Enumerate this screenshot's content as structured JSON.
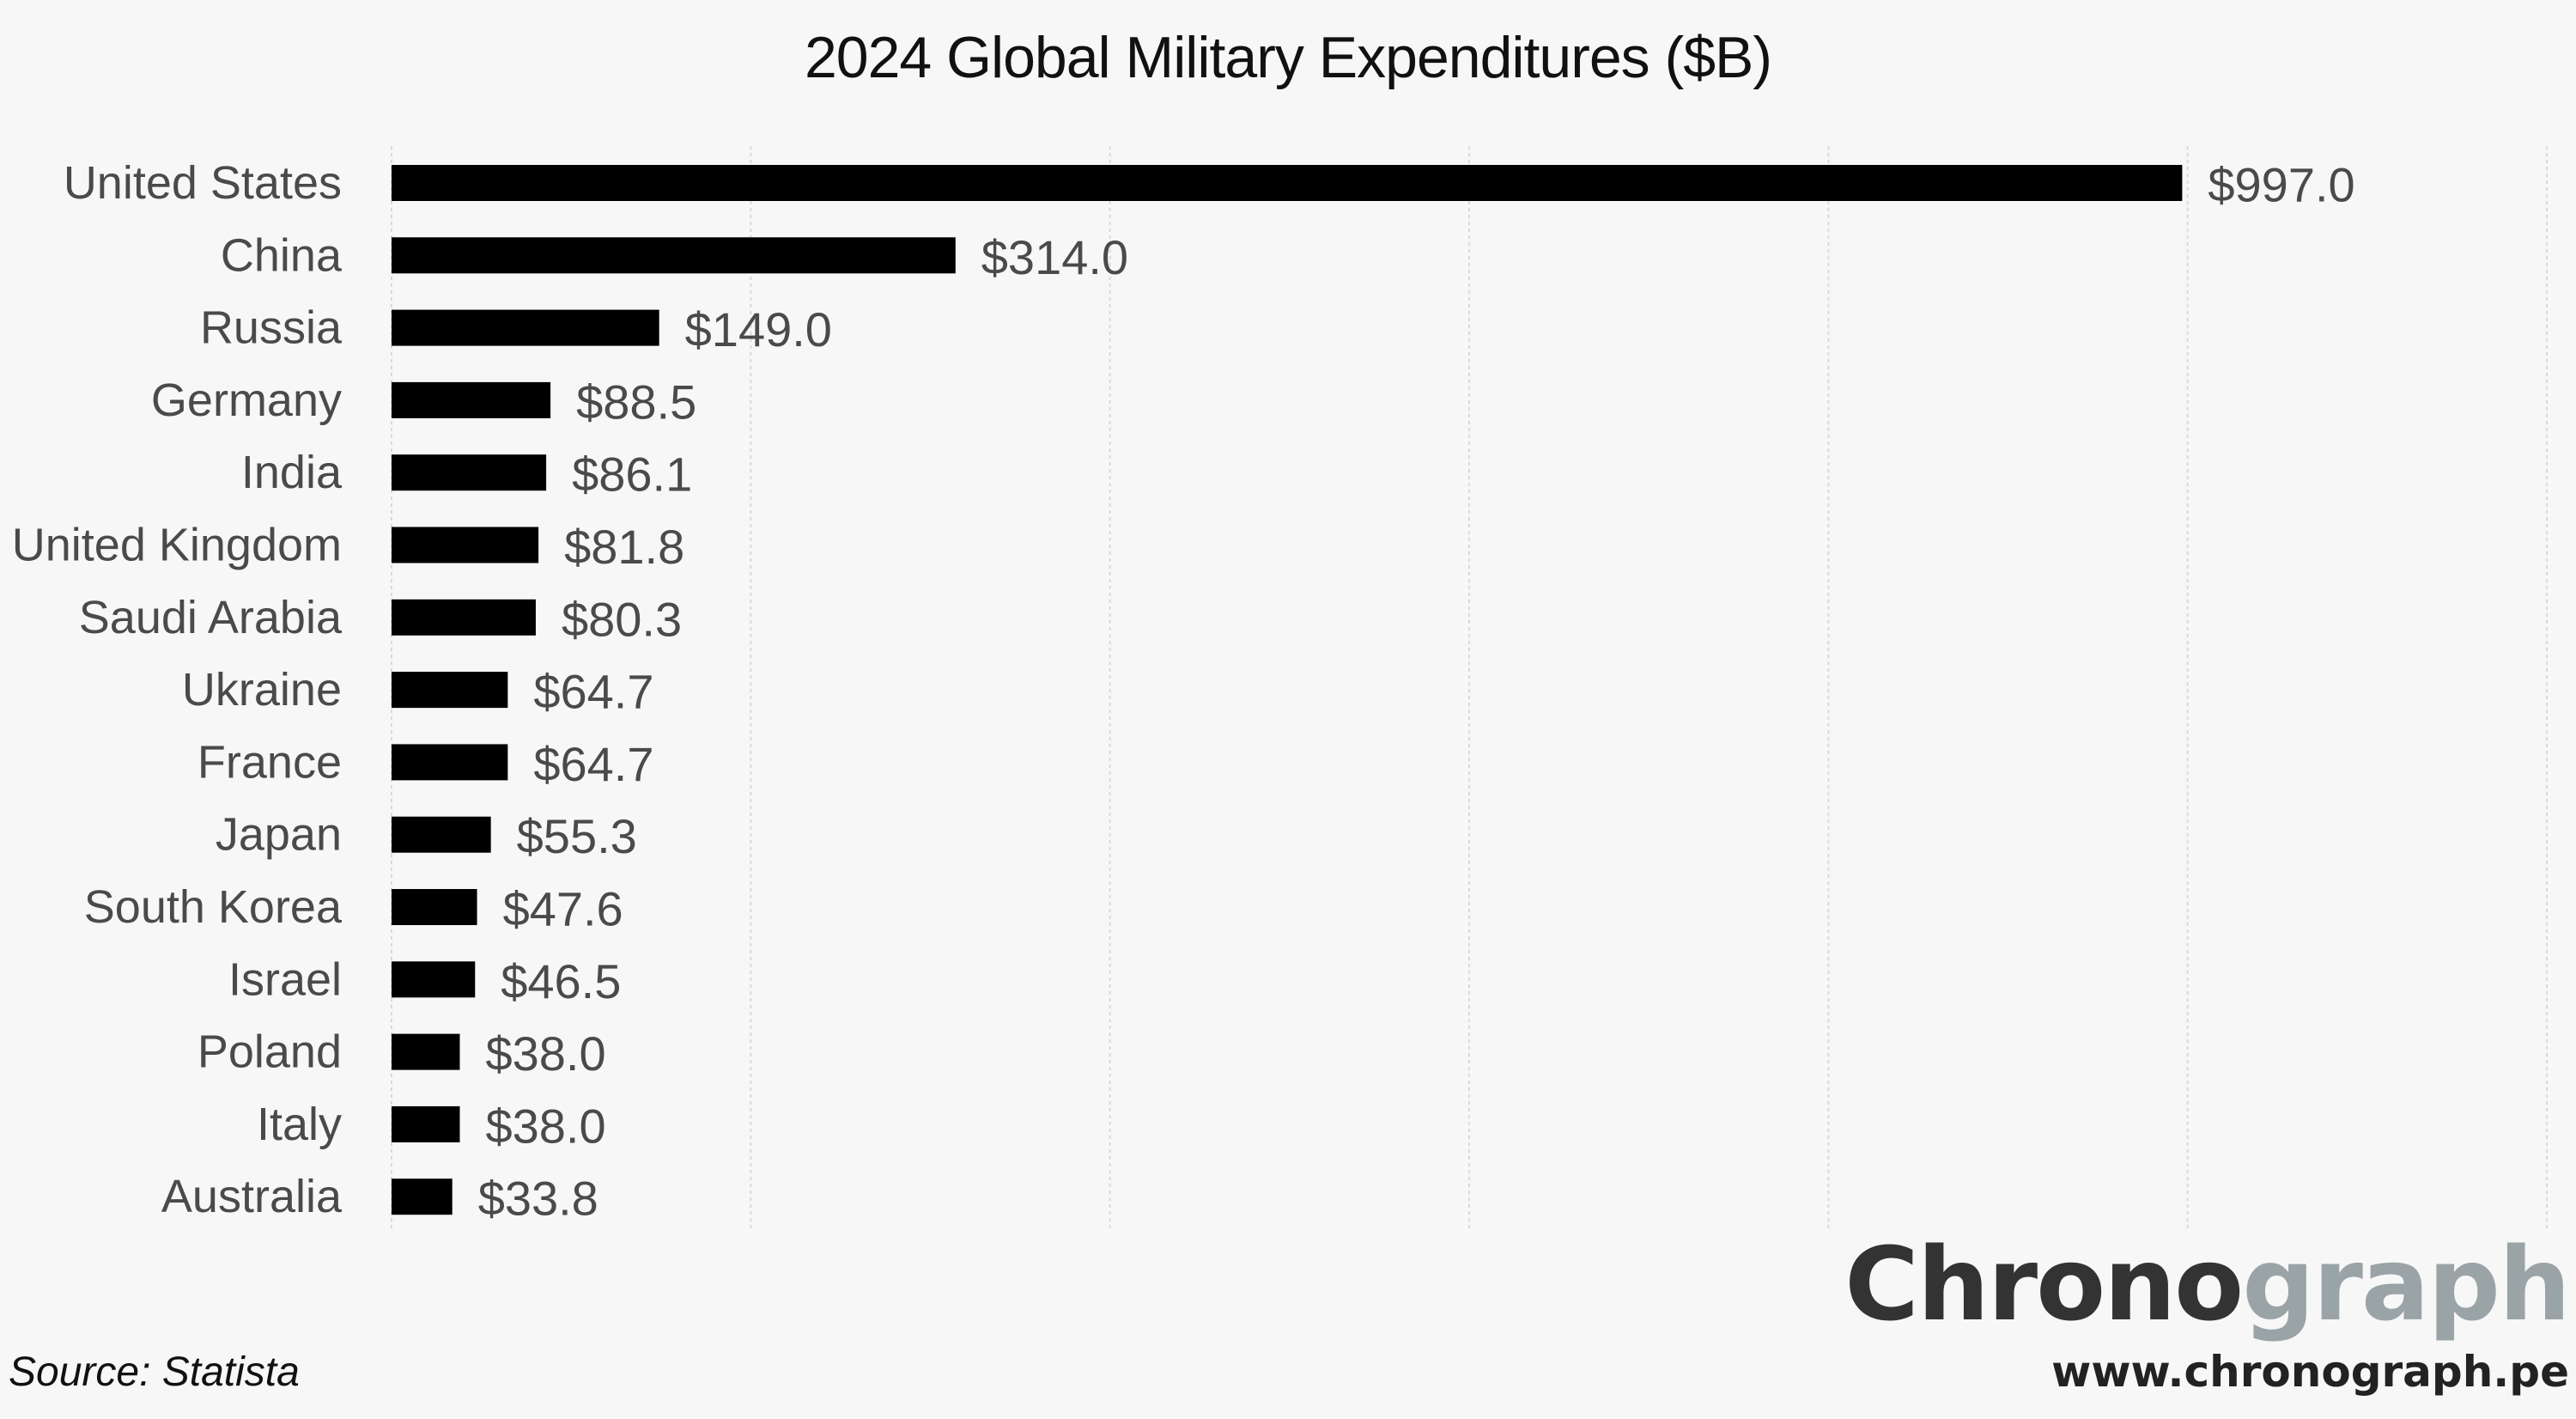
{
  "chart_data": {
    "type": "bar",
    "orientation": "horizontal",
    "title": "2024 Global Military Expenditures ($B)",
    "categories": [
      "United States",
      "China",
      "Russia",
      "Germany",
      "India",
      "United Kingdom",
      "Saudi Arabia",
      "Ukraine",
      "France",
      "Japan",
      "South Korea",
      "Israel",
      "Poland",
      "Italy",
      "Australia"
    ],
    "values": [
      997.0,
      314.0,
      149.0,
      88.5,
      86.1,
      81.8,
      80.3,
      64.7,
      64.7,
      55.3,
      47.6,
      46.5,
      38.0,
      38.0,
      33.8
    ],
    "value_labels": [
      "$997.0",
      "$314.0",
      "$149.0",
      "$88.5",
      "$86.1",
      "$81.8",
      "$80.3",
      "$64.7",
      "$64.7",
      "$55.3",
      "$47.6",
      "$46.5",
      "$38.0",
      "$38.0",
      "$33.8"
    ],
    "xlim": [
      0,
      1200
    ],
    "gridlines_at": [
      0,
      200,
      400,
      600,
      800,
      1000,
      1200
    ],
    "grid": true,
    "legend": "none",
    "bar_color": "#000000"
  },
  "source": "Source: Statista",
  "brand": {
    "part1": "Chrono",
    "part2": "graph",
    "website": "www.chronograph.pe",
    "color_dark": "#333333",
    "color_light": "#9aa4a7"
  },
  "colors": {
    "background": "#f7f7f7",
    "label_text": "#4a4a4a"
  }
}
